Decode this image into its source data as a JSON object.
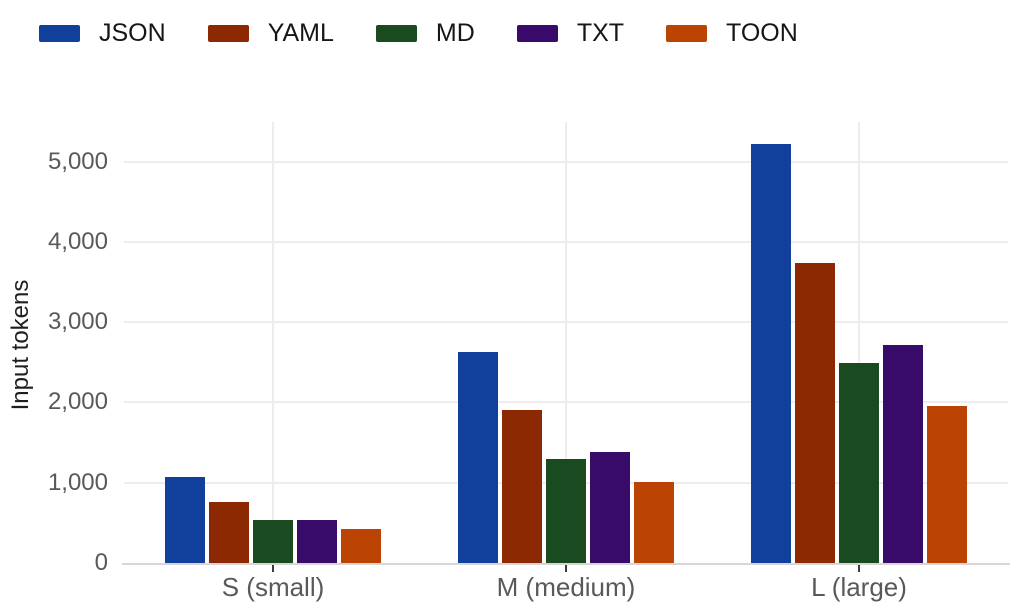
{
  "chart_data": {
    "type": "bar",
    "title": "",
    "xlabel": "",
    "ylabel": "Input tokens",
    "categories": [
      "S (small)",
      "M (medium)",
      "L (large)"
    ],
    "series": [
      {
        "name": "JSON",
        "color": "#11409c",
        "values": [
          1070,
          2630,
          5220
        ]
      },
      {
        "name": "YAML",
        "color": "#8c2903",
        "values": [
          760,
          1900,
          3740
        ]
      },
      {
        "name": "MD",
        "color": "#1a4a20",
        "values": [
          540,
          1300,
          2490
        ]
      },
      {
        "name": "TXT",
        "color": "#380a69",
        "values": [
          530,
          1380,
          2710
        ]
      },
      {
        "name": "TOON",
        "color": "#bc4403",
        "values": [
          420,
          1010,
          1950
        ]
      }
    ],
    "y_ticks": [
      "0",
      "1,000",
      "2,000",
      "3,000",
      "4,000",
      "5,000"
    ],
    "y_tick_values": [
      0,
      1000,
      2000,
      3000,
      4000,
      5000
    ],
    "ylim": [
      0,
      5500
    ],
    "grid": true,
    "legend_position": "top-left"
  }
}
